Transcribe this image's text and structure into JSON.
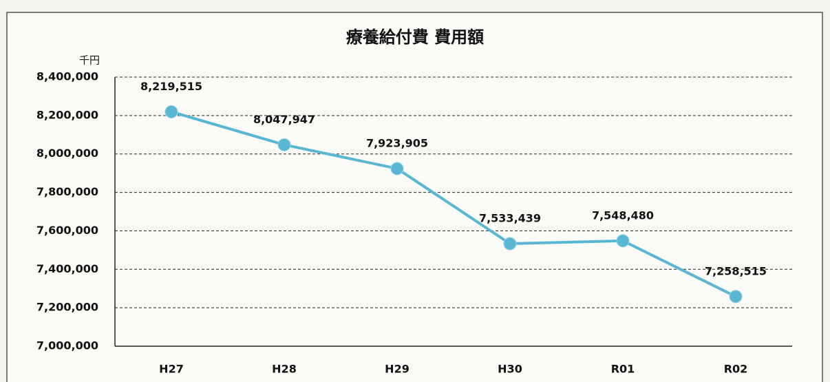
{
  "chart_data": {
    "type": "line",
    "title": "療養給付費 費用額",
    "y_unit": "千円",
    "categories": [
      "H27",
      "H28",
      "H29",
      "H30",
      "R01",
      "R02"
    ],
    "series": [
      {
        "name": "療養給付費 費用額",
        "color": "#5ab7d3",
        "values": [
          8219515,
          8047947,
          7923905,
          7533439,
          7548480,
          7258515
        ],
        "value_labels": [
          "8,219,515",
          "8,047,947",
          "7,923,905",
          "7,533,439",
          "7,548,480",
          "7,258,515"
        ]
      }
    ],
    "ylim": [
      7000000,
      8400000
    ],
    "yticks": [
      {
        "value": 7000000,
        "label": "7,000,000"
      },
      {
        "value": 7200000,
        "label": "7,200,000"
      },
      {
        "value": 7400000,
        "label": "7,400,000"
      },
      {
        "value": 7600000,
        "label": "7,600,000"
      },
      {
        "value": 7800000,
        "label": "7,800,000"
      },
      {
        "value": 8000000,
        "label": "8,000,000"
      },
      {
        "value": 8200000,
        "label": "8,200,000"
      },
      {
        "value": 8400000,
        "label": "8,400,000"
      }
    ],
    "grid": true
  }
}
